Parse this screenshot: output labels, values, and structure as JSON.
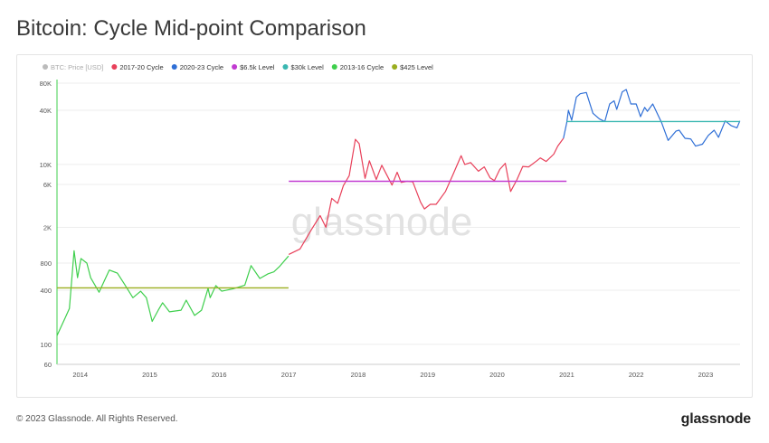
{
  "page": {
    "title": "Bitcoin: Cycle Mid-point Comparison",
    "copyright": "© 2023 Glassnode. All Rights Reserved.",
    "logo_text": "glassnode",
    "watermark": "glassnode"
  },
  "chart_data": {
    "type": "line",
    "title": "Bitcoin: Cycle Mid-point Comparison",
    "y_scale": "log",
    "ylim": [
      60,
      80000
    ],
    "xlim": [
      "2013-09-01",
      "2023-07-01"
    ],
    "y_ticks": [
      {
        "value": 60,
        "label": "60"
      },
      {
        "value": 100,
        "label": "100"
      },
      {
        "value": 400,
        "label": "400"
      },
      {
        "value": 800,
        "label": "800"
      },
      {
        "value": 2000,
        "label": "2K"
      },
      {
        "value": 6000,
        "label": "6K"
      },
      {
        "value": 10000,
        "label": "10K"
      },
      {
        "value": 40000,
        "label": "40K"
      },
      {
        "value": 80000,
        "label": "80K"
      }
    ],
    "x_ticks": [
      {
        "value": "2014-01-01",
        "label": "2014"
      },
      {
        "value": "2015-01-01",
        "label": "2015"
      },
      {
        "value": "2016-01-01",
        "label": "2016"
      },
      {
        "value": "2017-01-01",
        "label": "2017"
      },
      {
        "value": "2018-01-01",
        "label": "2018"
      },
      {
        "value": "2019-01-01",
        "label": "2019"
      },
      {
        "value": "2020-01-01",
        "label": "2020"
      },
      {
        "value": "2021-01-01",
        "label": "2021"
      },
      {
        "value": "2022-01-01",
        "label": "2022"
      },
      {
        "value": "2023-01-01",
        "label": "2023"
      }
    ],
    "grid": true,
    "legend_position": "top-left",
    "series": [
      {
        "name": "BTC: Price [USD]",
        "color": "#bbbbbb",
        "points": []
      },
      {
        "name": "2017-20 Cycle",
        "color": "#e8405a",
        "points": [
          [
            "2017-01-01",
            1000
          ],
          [
            "2017-03-01",
            1150
          ],
          [
            "2017-05-01",
            1900
          ],
          [
            "2017-06-15",
            2700
          ],
          [
            "2017-07-15",
            2000
          ],
          [
            "2017-08-15",
            4200
          ],
          [
            "2017-09-15",
            3700
          ],
          [
            "2017-10-15",
            5800
          ],
          [
            "2017-11-15",
            7500
          ],
          [
            "2017-12-17",
            19000
          ],
          [
            "2018-01-06",
            17000
          ],
          [
            "2018-02-06",
            7000
          ],
          [
            "2018-03-01",
            11000
          ],
          [
            "2018-04-06",
            6800
          ],
          [
            "2018-05-05",
            9800
          ],
          [
            "2018-06-28",
            5900
          ],
          [
            "2018-07-25",
            8200
          ],
          [
            "2018-08-15",
            6300
          ],
          [
            "2018-09-15",
            6500
          ],
          [
            "2018-10-15",
            6400
          ],
          [
            "2018-11-25",
            3800
          ],
          [
            "2018-12-15",
            3200
          ],
          [
            "2019-01-15",
            3600
          ],
          [
            "2019-02-15",
            3600
          ],
          [
            "2019-04-05",
            5000
          ],
          [
            "2019-05-15",
            7800
          ],
          [
            "2019-06-26",
            12500
          ],
          [
            "2019-07-15",
            10000
          ],
          [
            "2019-08-15",
            10500
          ],
          [
            "2019-09-25",
            8400
          ],
          [
            "2019-10-26",
            9400
          ],
          [
            "2019-11-25",
            7100
          ],
          [
            "2019-12-18",
            6600
          ],
          [
            "2020-01-15",
            8800
          ],
          [
            "2020-02-13",
            10300
          ],
          [
            "2020-03-12",
            5000
          ],
          [
            "2020-04-15",
            6800
          ],
          [
            "2020-05-15",
            9500
          ],
          [
            "2020-06-15",
            9400
          ],
          [
            "2020-07-28",
            11000
          ],
          [
            "2020-08-15",
            11800
          ],
          [
            "2020-09-15",
            10800
          ],
          [
            "2020-10-25",
            13000
          ],
          [
            "2020-11-15",
            16000
          ],
          [
            "2020-12-15",
            19500
          ]
        ]
      },
      {
        "name": "2020-23 Cycle",
        "color": "#2f6fd6",
        "points": [
          [
            "2020-12-15",
            19500
          ],
          [
            "2021-01-01",
            29000
          ],
          [
            "2021-01-10",
            40000
          ],
          [
            "2021-01-27",
            31000
          ],
          [
            "2021-02-21",
            56000
          ],
          [
            "2021-03-13",
            61000
          ],
          [
            "2021-04-14",
            63000
          ],
          [
            "2021-05-19",
            37000
          ],
          [
            "2021-06-22",
            32000
          ],
          [
            "2021-07-20",
            30000
          ],
          [
            "2021-08-15",
            47000
          ],
          [
            "2021-09-07",
            51000
          ],
          [
            "2021-09-21",
            41000
          ],
          [
            "2021-10-20",
            64000
          ],
          [
            "2021-11-10",
            68000
          ],
          [
            "2021-12-04",
            47000
          ],
          [
            "2022-01-01",
            47000
          ],
          [
            "2022-01-24",
            34000
          ],
          [
            "2022-02-15",
            43000
          ],
          [
            "2022-03-01",
            39000
          ],
          [
            "2022-03-29",
            47000
          ],
          [
            "2022-05-15",
            29000
          ],
          [
            "2022-06-18",
            18500
          ],
          [
            "2022-07-30",
            23500
          ],
          [
            "2022-08-15",
            24000
          ],
          [
            "2022-09-15",
            19500
          ],
          [
            "2022-10-15",
            19200
          ],
          [
            "2022-11-09",
            16000
          ],
          [
            "2022-12-15",
            16800
          ],
          [
            "2023-01-15",
            21000
          ],
          [
            "2023-02-15",
            24000
          ],
          [
            "2023-03-10",
            20000
          ],
          [
            "2023-04-14",
            30500
          ],
          [
            "2023-05-15",
            27000
          ],
          [
            "2023-06-15",
            25500
          ],
          [
            "2023-06-30",
            30500
          ]
        ]
      },
      {
        "name": "$6.5k Level",
        "color": "#c13bd1",
        "points": [
          [
            "2017-01-01",
            6500
          ],
          [
            "2020-12-31",
            6500
          ]
        ]
      },
      {
        "name": "$30k Level",
        "color": "#3ab7b1",
        "points": [
          [
            "2020-12-31",
            30000
          ],
          [
            "2023-06-30",
            30000
          ]
        ]
      },
      {
        "name": "2013-16 Cycle",
        "color": "#3fcf4d",
        "points": [
          [
            "2013-09-01",
            125
          ],
          [
            "2013-10-15",
            200
          ],
          [
            "2013-11-05",
            250
          ],
          [
            "2013-11-30",
            1100
          ],
          [
            "2013-12-18",
            550
          ],
          [
            "2014-01-05",
            900
          ],
          [
            "2014-02-05",
            800
          ],
          [
            "2014-02-25",
            550
          ],
          [
            "2014-04-10",
            380
          ],
          [
            "2014-06-03",
            670
          ],
          [
            "2014-07-15",
            620
          ],
          [
            "2014-08-18",
            480
          ],
          [
            "2014-10-05",
            330
          ],
          [
            "2014-11-15",
            390
          ],
          [
            "2014-12-15",
            330
          ],
          [
            "2015-01-14",
            180
          ],
          [
            "2015-02-15",
            240
          ],
          [
            "2015-03-10",
            290
          ],
          [
            "2015-04-15",
            230
          ],
          [
            "2015-06-15",
            240
          ],
          [
            "2015-07-12",
            310
          ],
          [
            "2015-08-25",
            210
          ],
          [
            "2015-10-01",
            240
          ],
          [
            "2015-11-04",
            420
          ],
          [
            "2015-11-15",
            330
          ],
          [
            "2015-12-15",
            450
          ],
          [
            "2016-01-15",
            390
          ],
          [
            "2016-03-15",
            415
          ],
          [
            "2016-05-15",
            455
          ],
          [
            "2016-06-17",
            750
          ],
          [
            "2016-08-02",
            540
          ],
          [
            "2016-09-15",
            610
          ],
          [
            "2016-10-15",
            640
          ],
          [
            "2016-11-15",
            740
          ],
          [
            "2016-12-31",
            960
          ]
        ]
      },
      {
        "name": "$425 Level",
        "color": "#9aae1f",
        "points": [
          [
            "2013-09-01",
            425
          ],
          [
            "2016-12-31",
            425
          ]
        ]
      }
    ]
  }
}
